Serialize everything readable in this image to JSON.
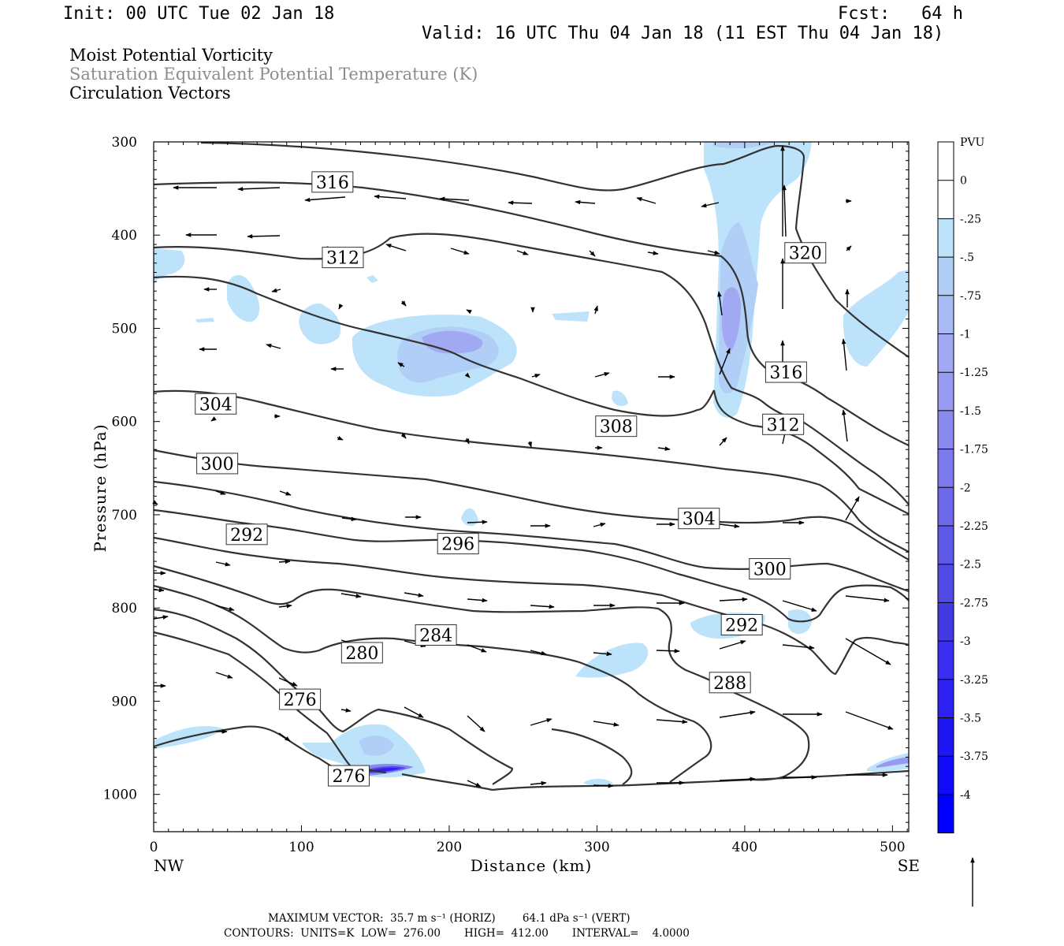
{
  "header": {
    "init": "Init: 00 UTC Tue 02 Jan 18",
    "fcst": "Fcst:   64 h",
    "valid": "Valid: 16 UTC Thu 04 Jan 18 (11 EST Thu 04 Jan 18)"
  },
  "fields": {
    "line1": "Moist Potential Vorticity",
    "line2": "Saturation Equivalent Potential Temperature (K)",
    "line3": "Circulation Vectors"
  },
  "footer": {
    "vector_line": "MAXIMUM VECTOR:  35.7 m s⁻¹ (HORIZ)        64.1 dPa s⁻¹ (VERT)",
    "contour_line": "CONTOURS:  UNITS=K  LOW=  276.00       HIGH=  412.00       INTERVAL=    4.0000"
  },
  "chart_data": {
    "type": "contour",
    "xlabel": "Distance (km)",
    "ylabel": "Pressure (hPa)",
    "x_ticks": [
      "0",
      "100",
      "200",
      "300",
      "400",
      "500"
    ],
    "y_ticks": [
      "300",
      "400",
      "500",
      "600",
      "700",
      "800",
      "900",
      "1000"
    ],
    "x_left_label": "NW",
    "x_right_label": "SE",
    "xlim": [
      0,
      511
    ],
    "ylim": [
      1040,
      300
    ],
    "contour_units": "K",
    "contour_labels": [
      {
        "text": "316",
        "x": 121,
        "p": 343
      },
      {
        "text": "312",
        "x": 128,
        "p": 424
      },
      {
        "text": "320",
        "x": 441,
        "p": 419
      },
      {
        "text": "316",
        "x": 428,
        "p": 547
      },
      {
        "text": "312",
        "x": 426,
        "p": 603
      },
      {
        "text": "304",
        "x": 42,
        "p": 581
      },
      {
        "text": "308",
        "x": 313,
        "p": 605
      },
      {
        "text": "300",
        "x": 43,
        "p": 645
      },
      {
        "text": "304",
        "x": 369,
        "p": 704
      },
      {
        "text": "292",
        "x": 63,
        "p": 721
      },
      {
        "text": "296",
        "x": 206,
        "p": 731
      },
      {
        "text": "300",
        "x": 417,
        "p": 758
      },
      {
        "text": "292",
        "x": 398,
        "p": 818
      },
      {
        "text": "284",
        "x": 191,
        "p": 829
      },
      {
        "text": "280",
        "x": 141,
        "p": 848
      },
      {
        "text": "288",
        "x": 390,
        "p": 880
      },
      {
        "text": "276",
        "x": 99,
        "p": 898
      },
      {
        "text": "276",
        "x": 132,
        "p": 980
      }
    ],
    "colorbar": {
      "units": "PVU",
      "labels": [
        "0",
        "-.25",
        "-.5",
        "-.75",
        "-1",
        "-1.25",
        "-1.5",
        "-1.75",
        "-2",
        "-2.25",
        "-2.5",
        "-2.75",
        "-3",
        "-3.25",
        "-3.5",
        "-3.75",
        "-4"
      ],
      "colors": [
        "#ffffff",
        "#bde3fb",
        "#b0cef6",
        "#a9bbf4",
        "#a1a9f2",
        "#9899f0",
        "#8a89ee",
        "#7c79ec",
        "#6e69ea",
        "#5f59e7",
        "#514ae5",
        "#433ae3",
        "#3a2ef0",
        "#2c22f2",
        "#1f16f4",
        "#100bf8",
        "#0000ff"
      ]
    }
  }
}
